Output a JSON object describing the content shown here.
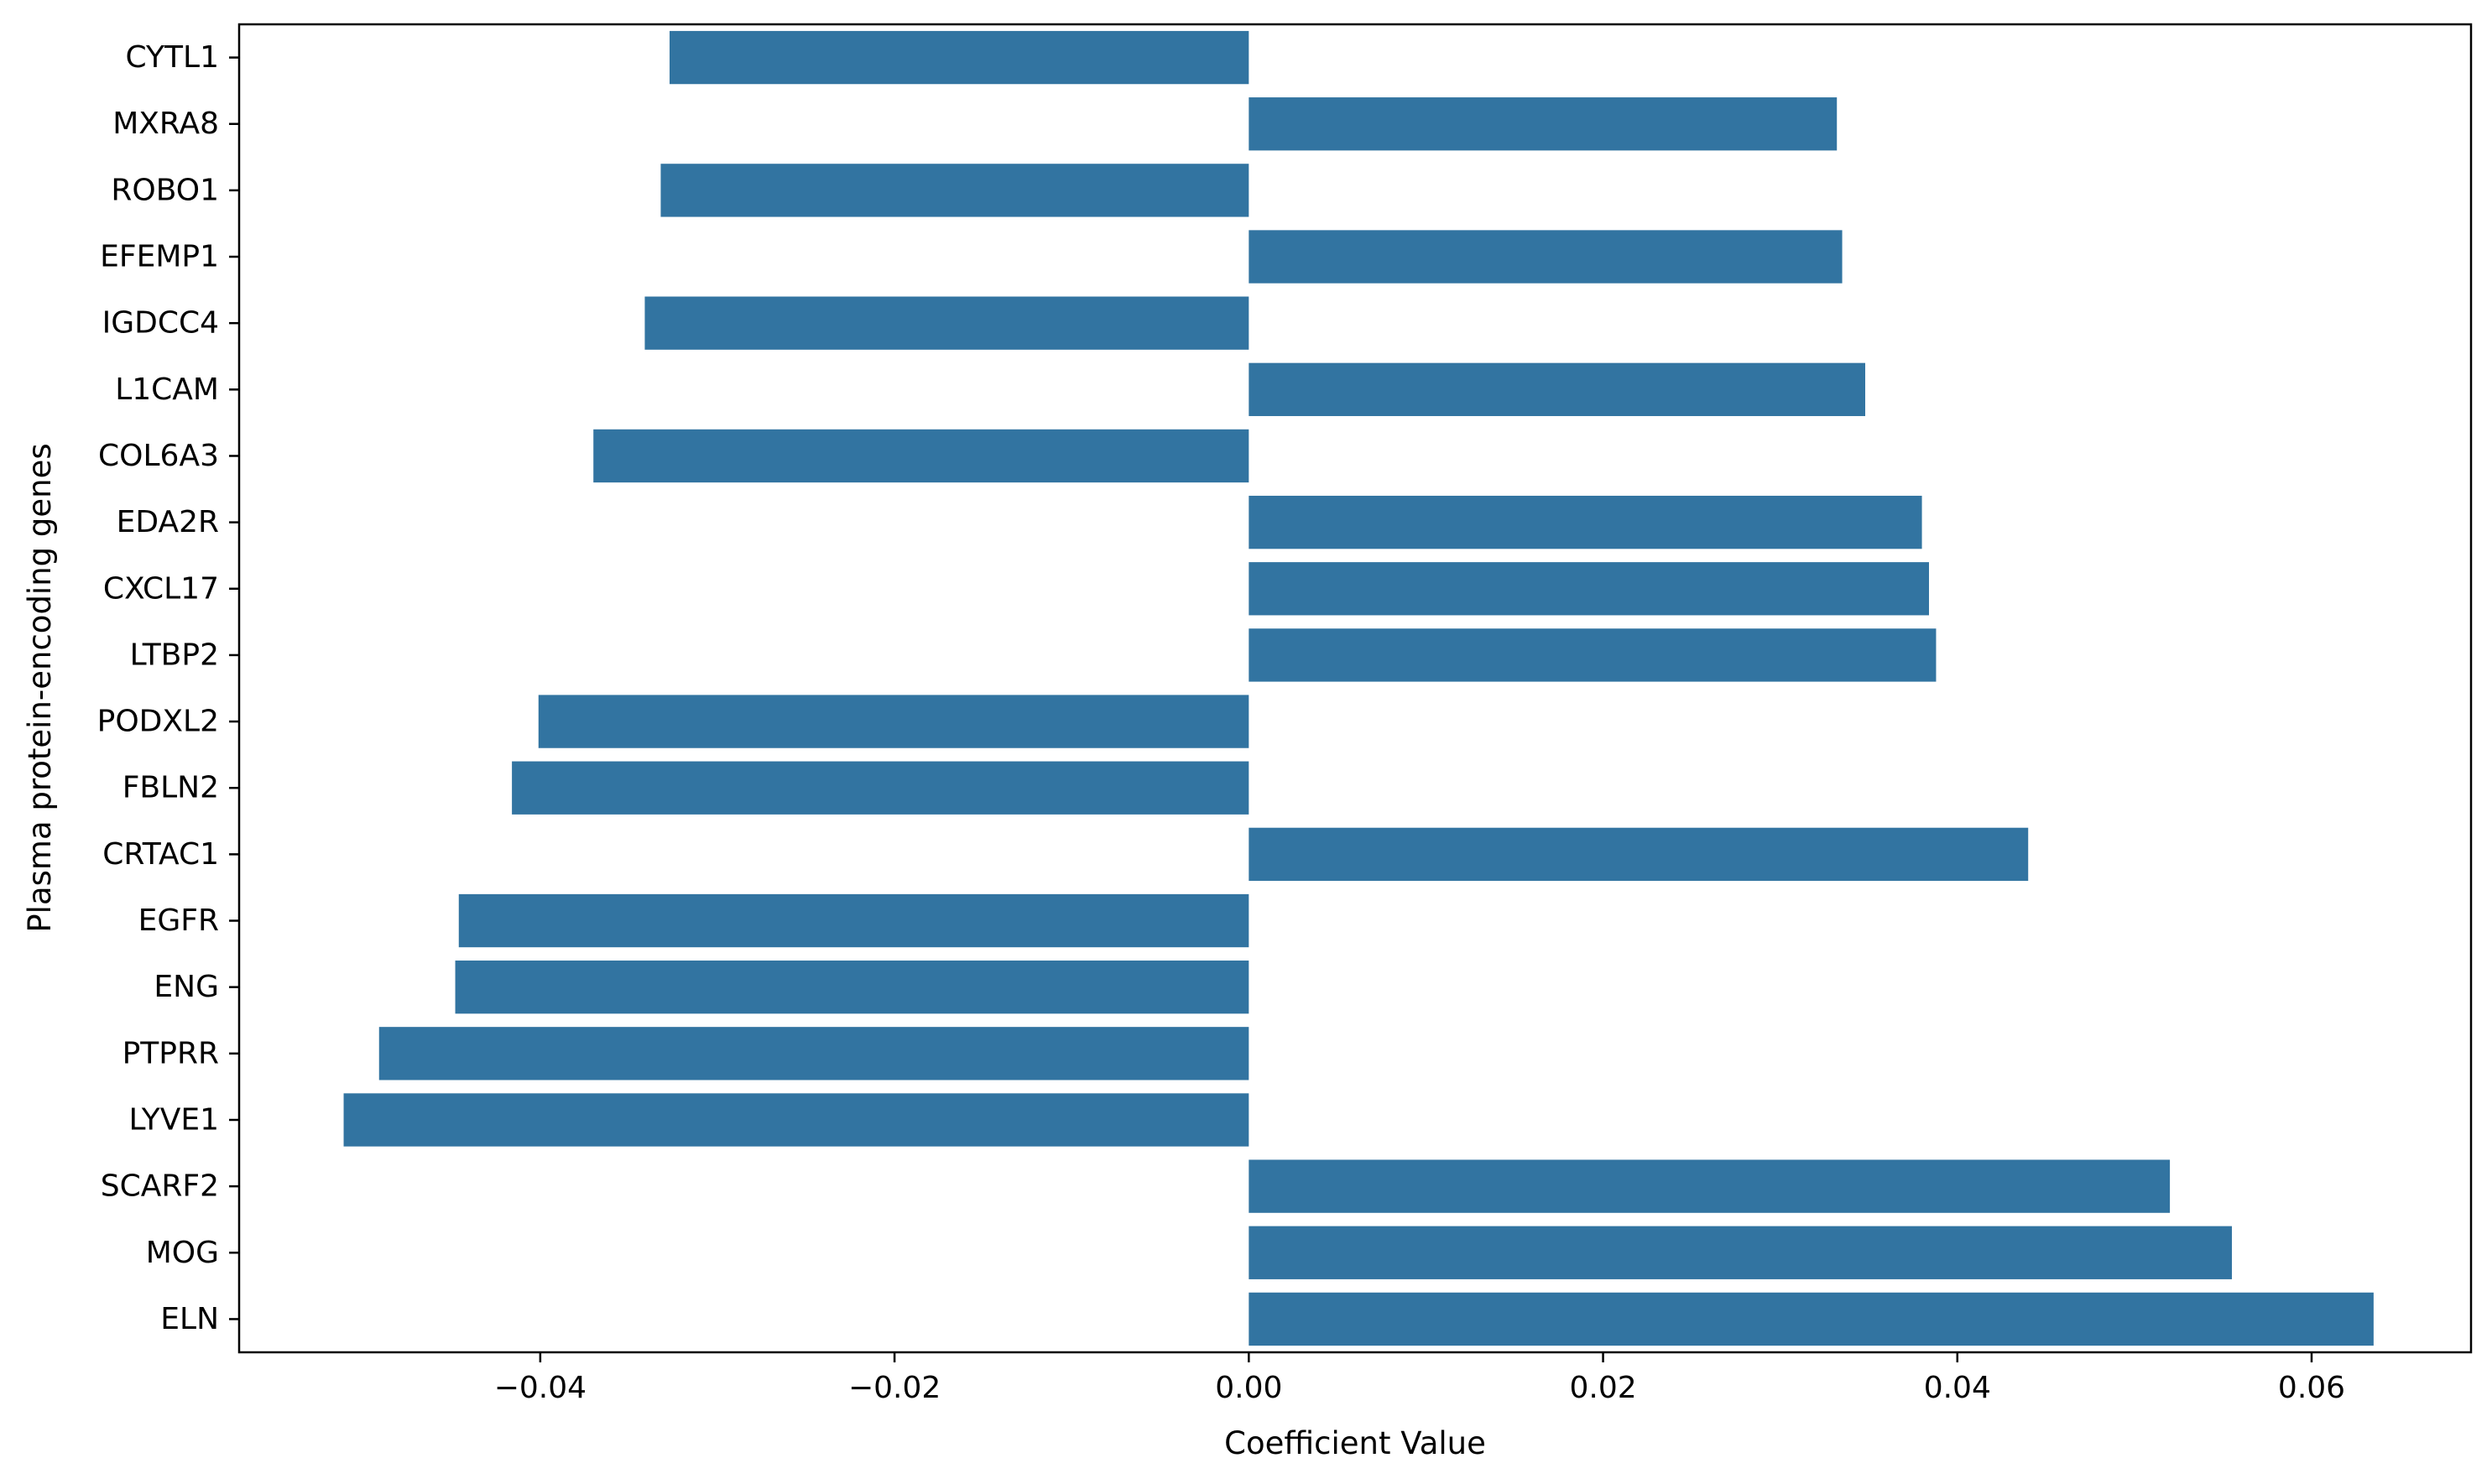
{
  "chart_data": {
    "type": "bar",
    "orientation": "horizontal",
    "xlabel": "Coefficient Value",
    "ylabel": "Plasma protein-encoding genes",
    "xlim": [
      -0.057,
      0.069
    ],
    "xticks": [
      -0.04,
      -0.02,
      0.0,
      0.02,
      0.04,
      0.06
    ],
    "xtick_labels": [
      "−0.04",
      "−0.02",
      "0.00",
      "0.02",
      "0.04",
      "0.06"
    ],
    "bar_color": "#3274a1",
    "categories": [
      "CYTL1",
      "MXRA8",
      "ROBO1",
      "EFEMP1",
      "IGDCC4",
      "L1CAM",
      "COL6A3",
      "EDA2R",
      "CXCL17",
      "LTBP2",
      "PODXL2",
      "FBLN2",
      "CRTAC1",
      "EGFR",
      "ENG",
      "PTPRR",
      "LYVE1",
      "SCARF2",
      "MOG",
      "ELN"
    ],
    "values": [
      -0.0327,
      0.0332,
      -0.0332,
      0.0335,
      -0.0341,
      0.0348,
      -0.037,
      0.038,
      0.0384,
      0.0388,
      -0.0401,
      -0.0416,
      0.044,
      -0.0446,
      -0.0448,
      -0.0491,
      -0.0511,
      0.052,
      0.0555,
      0.0635
    ],
    "grid": false,
    "legend": "none"
  }
}
